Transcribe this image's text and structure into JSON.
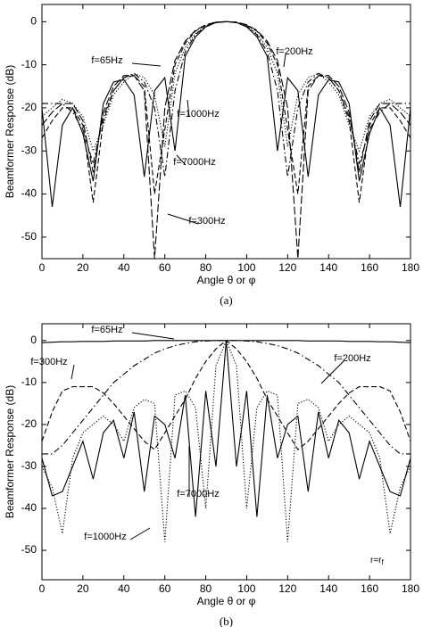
{
  "chart_data": [
    {
      "type": "line",
      "xlabel": "Angle θ or φ",
      "ylabel": "Beamformer Response (dB)",
      "caption": "(a)",
      "xlim": [
        0,
        180
      ],
      "ylim": [
        -55,
        4
      ],
      "xticks": [
        0,
        20,
        40,
        60,
        80,
        100,
        120,
        140,
        160,
        180
      ],
      "yticks": [
        0,
        -10,
        -20,
        -30,
        -40,
        -50
      ],
      "x": [
        0,
        5,
        10,
        15,
        20,
        25,
        30,
        35,
        40,
        45,
        50,
        55,
        60,
        65,
        70,
        75,
        80,
        85,
        90,
        95,
        100,
        105,
        110,
        115,
        120,
        125,
        130,
        135,
        140,
        145,
        150,
        155,
        160,
        165,
        170,
        175,
        180
      ],
      "series": [
        {
          "name": "f=65Hz",
          "color": "#000000",
          "dash": "solid",
          "values": [
            -20,
            -43,
            -24,
            -20,
            -26,
            -37,
            -19,
            -14,
            -13.5,
            -17,
            -36,
            -16,
            -13,
            -30,
            -8,
            -3.5,
            -1.2,
            -0.2,
            0,
            -0.2,
            -1.2,
            -3.5,
            -8,
            -30,
            -13,
            -16,
            -36,
            -17,
            -13.5,
            -14,
            -19,
            -37,
            -26,
            -20,
            -24,
            -43,
            -20
          ]
        },
        {
          "name": "f=200Hz",
          "color": "#000000",
          "dash": "dashed",
          "values": [
            -27,
            -23,
            -20,
            -20,
            -24,
            -42,
            -23,
            -16,
            -13,
            -12.5,
            -15,
            -40,
            -25,
            -10,
            -5,
            -2.2,
            -0.8,
            -0.1,
            0,
            -0.1,
            -0.8,
            -2.2,
            -5,
            -10,
            -25,
            -40,
            -15,
            -12.5,
            -13,
            -16,
            -23,
            -42,
            -24,
            -20,
            -20,
            -23,
            -27
          ]
        },
        {
          "name": "f=1000Hz",
          "color": "#000000",
          "dash": "dotted",
          "values": [
            -22,
            -20,
            -18,
            -19,
            -22,
            -30,
            -24,
            -17,
            -14,
            -12,
            -13,
            -17,
            -29,
            -12,
            -6,
            -2.8,
            -1,
            -0.2,
            0,
            -0.2,
            -1,
            -2.8,
            -6,
            -12,
            -29,
            -17,
            -13,
            -12,
            -14,
            -17,
            -24,
            -30,
            -22,
            -19,
            -18,
            -20,
            -22
          ]
        },
        {
          "name": "f=7000Hz",
          "color": "#000000",
          "dash": "dashdot",
          "values": [
            -19,
            -19,
            -19,
            -21,
            -25,
            -33,
            -22,
            -16,
            -13,
            -12,
            -14,
            -20,
            -36,
            -16,
            -7,
            -3,
            -1,
            -0.2,
            0,
            -0.2,
            -1,
            -3,
            -7,
            -16,
            -36,
            -20,
            -14,
            -12,
            -13,
            -16,
            -22,
            -33,
            -25,
            -21,
            -19,
            -19,
            -19
          ]
        },
        {
          "name": "f=300Hz",
          "color": "#000000",
          "dash": "longdash",
          "values": [
            -24,
            -21,
            -19,
            -19,
            -23,
            -35,
            -21,
            -15,
            -12.5,
            -12.5,
            -16,
            -55,
            -20,
            -9,
            -4.5,
            -2,
            -0.7,
            -0.1,
            0,
            -0.1,
            -0.7,
            -2,
            -4.5,
            -9,
            -20,
            -55,
            -16,
            -12.5,
            -12.5,
            -15,
            -21,
            -35,
            -23,
            -19,
            -19,
            -21,
            -24
          ]
        }
      ]
    },
    {
      "type": "line",
      "xlabel": "Angle θ or φ",
      "ylabel": "Beamformer Response (dB)",
      "caption": "(b)",
      "xlim": [
        0,
        180
      ],
      "ylim": [
        -57,
        4
      ],
      "xticks": [
        0,
        20,
        40,
        60,
        80,
        100,
        120,
        140,
        160,
        180
      ],
      "yticks": [
        0,
        -10,
        -20,
        -30,
        -40,
        -50
      ],
      "x": [
        0,
        5,
        10,
        15,
        20,
        25,
        30,
        35,
        40,
        45,
        50,
        55,
        60,
        65,
        70,
        75,
        80,
        85,
        90,
        95,
        100,
        105,
        110,
        115,
        120,
        125,
        130,
        135,
        140,
        145,
        150,
        155,
        160,
        165,
        170,
        175,
        180
      ],
      "annotation": {
        "text": "r=r",
        "sub": "f"
      },
      "series": [
        {
          "name": "f=65Hz",
          "color": "#000000",
          "dash": "solid",
          "values": [
            -0.5,
            -0.4,
            -0.3,
            -0.3,
            -0.2,
            -0.2,
            -0.2,
            -0.1,
            -0.1,
            -0.1,
            -0.1,
            0,
            0,
            0,
            0,
            0,
            0,
            0,
            0,
            0,
            0,
            0,
            0,
            0,
            0,
            0,
            -0.1,
            -0.1,
            -0.1,
            -0.1,
            -0.2,
            -0.2,
            -0.2,
            -0.3,
            -0.3,
            -0.4,
            -0.5
          ]
        },
        {
          "name": "f=300Hz",
          "color": "#000000",
          "dash": "dashed",
          "values": [
            -24,
            -17,
            -12,
            -11,
            -11,
            -11,
            -12.5,
            -15,
            -18,
            -21,
            -24,
            -26,
            -22,
            -18,
            -14,
            -9,
            -5,
            -2,
            0,
            -2,
            -5,
            -9,
            -14,
            -18,
            -22,
            -26,
            -24,
            -21,
            -18,
            -15,
            -12.5,
            -11,
            -11,
            -11,
            -12,
            -17,
            -24
          ]
        },
        {
          "name": "f=200Hz",
          "color": "#000000",
          "dash": "dashdot",
          "values": [
            -27,
            -27,
            -25,
            -22,
            -19,
            -16,
            -13,
            -10,
            -8,
            -6,
            -4.5,
            -3,
            -2,
            -1.2,
            -0.7,
            -0.3,
            -0.1,
            0,
            0,
            0,
            -0.1,
            -0.3,
            -0.7,
            -1.2,
            -2,
            -3,
            -4.5,
            -6,
            -8,
            -10,
            -13,
            -16,
            -19,
            -22,
            -25,
            -27,
            -27
          ]
        },
        {
          "name": "f=7000Hz",
          "color": "#000000",
          "dash": "solid",
          "values": [
            -28,
            -37,
            -36,
            -30,
            -24,
            -33,
            -22,
            -19,
            -28,
            -17,
            -36,
            -18,
            -20,
            -28,
            -13,
            -42,
            -12,
            -30,
            0,
            -30,
            -12,
            -42,
            -13,
            -28,
            -20,
            -18,
            -36,
            -17,
            -28,
            -19,
            -22,
            -33,
            -24,
            -30,
            -36,
            -37,
            -28
          ]
        },
        {
          "name": "f=1000Hz",
          "color": "#000000",
          "dash": "dotted",
          "values": [
            -30,
            -35,
            -46,
            -28,
            -22,
            -20,
            -18,
            -20,
            -24,
            -16,
            -14,
            -15,
            -48,
            -13,
            -12,
            -16,
            -40,
            -6,
            0,
            -6,
            -40,
            -16,
            -12,
            -13,
            -48,
            -15,
            -14,
            -16,
            -24,
            -20,
            -18,
            -20,
            -22,
            -28,
            -46,
            -35,
            -30
          ]
        }
      ]
    }
  ]
}
